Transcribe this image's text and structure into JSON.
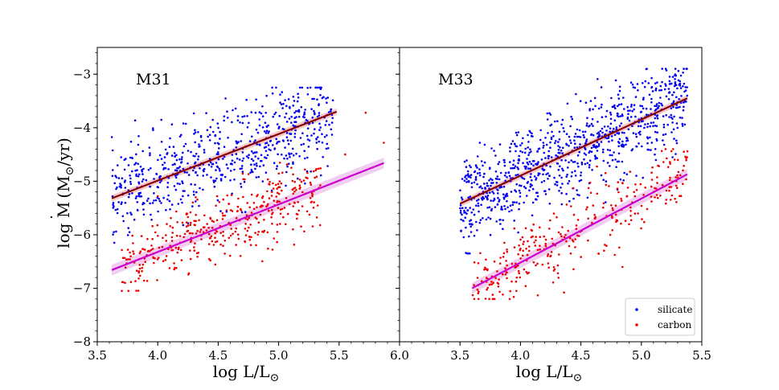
{
  "figure": {
    "y_axis_label_main": "log M",
    "y_axis_label_dot": "˙",
    "y_axis_label_unit_open": "(M",
    "y_axis_label_sun": "⊙",
    "y_axis_label_unit_close": "/yr)",
    "x_axis_label_main": "log L/L",
    "x_axis_label_sun": "⊙"
  },
  "chart_data": [
    {
      "type": "scatter",
      "panel_label": "M31",
      "xlabel": "log L/L⊙",
      "ylabel": "log Ṁ (M⊙/yr)",
      "xlim": [
        3.5,
        6.0
      ],
      "ylim": [
        -8,
        -2.5
      ],
      "xticks": [
        3.5,
        4.0,
        4.5,
        5.0,
        5.5,
        6.0
      ],
      "xtick_labels": [
        "3.5",
        "4.0",
        "4.5",
        "5.0",
        "5.5",
        "6.0"
      ],
      "yticks": [
        -8,
        -7,
        -6,
        -5,
        -4,
        -3
      ],
      "ytick_labels": [
        "−8",
        "−7",
        "−6",
        "−5",
        "−4",
        "−3"
      ],
      "series": [
        {
          "name": "silicate",
          "color": "#0000ee",
          "count": 650,
          "x_range": [
            3.62,
            5.45
          ],
          "fit": {
            "slope": 0.87,
            "intercept": -8.47
          },
          "scatter_sd": 0.42,
          "y_bounds": [
            -6.15,
            -3.25
          ]
        },
        {
          "name": "carbon",
          "color": "#ee0000",
          "count": 400,
          "x_range": [
            3.7,
            5.35
          ],
          "fit": {
            "slope": 0.885,
            "intercept": -9.86
          },
          "scatter_sd": 0.33,
          "y_bounds": [
            -7.05,
            -4.4
          ],
          "extra_points": [
            {
              "x": 5.72,
              "y": -3.72
            },
            {
              "x": 5.87,
              "y": -4.28
            },
            {
              "x": 5.55,
              "y": -4.5
            }
          ]
        }
      ],
      "fit_lines": [
        {
          "name": "silicate-fit",
          "color": "#8b0000",
          "band_color": "#f0b8b8",
          "x": [
            3.62,
            5.48
          ],
          "y": [
            -5.32,
            -3.7
          ],
          "band_halfwidth": 0.06
        },
        {
          "name": "carbon-fit",
          "color": "#cc00cc",
          "band_color": "#eebcee",
          "x": [
            3.62,
            5.87
          ],
          "y": [
            -6.66,
            -4.66
          ],
          "band_halfwidth": 0.1
        }
      ]
    },
    {
      "type": "scatter",
      "panel_label": "M33",
      "xlabel": "log L/L⊙",
      "ylabel": "",
      "xlim": [
        3.0,
        5.5
      ],
      "ylim": [
        -8,
        -2.5
      ],
      "xticks": [
        3.0,
        3.5,
        4.0,
        4.5,
        5.0,
        5.5
      ],
      "xtick_labels": [
        "",
        "3.5",
        "4.0",
        "4.5",
        "5.0",
        "5.5"
      ],
      "yticks": [
        -8,
        -7,
        -6,
        -5,
        -4,
        -3
      ],
      "ytick_labels": [
        "",
        "",
        "",
        "",
        "",
        ""
      ],
      "series": [
        {
          "name": "silicate",
          "color": "#0000ee",
          "count": 900,
          "x_range": [
            3.5,
            5.38
          ],
          "fit": {
            "slope": 1.05,
            "intercept": -9.1
          },
          "scatter_sd": 0.42,
          "y_bounds": [
            -6.35,
            -2.9
          ]
        },
        {
          "name": "carbon",
          "color": "#ee0000",
          "count": 320,
          "x_range": [
            3.6,
            5.4
          ],
          "fit": {
            "slope": 1.2,
            "intercept": -11.32
          },
          "scatter_sd": 0.33,
          "y_bounds": [
            -7.2,
            -4.4
          ]
        }
      ],
      "fit_lines": [
        {
          "name": "silicate-fit",
          "color": "#8b0000",
          "band_color": "#f0b8b8",
          "x": [
            3.5,
            5.38
          ],
          "y": [
            -5.42,
            -3.45
          ],
          "band_halfwidth": 0.06
        },
        {
          "name": "carbon-fit",
          "color": "#cc00cc",
          "band_color": "#eebcee",
          "x": [
            3.6,
            5.38
          ],
          "y": [
            -7.0,
            -4.87
          ],
          "band_halfwidth": 0.1
        }
      ]
    }
  ],
  "legend": {
    "position": "lower-right",
    "entries": [
      {
        "label": "silicate",
        "color": "#0000ee"
      },
      {
        "label": "carbon",
        "color": "#ee0000"
      }
    ]
  }
}
